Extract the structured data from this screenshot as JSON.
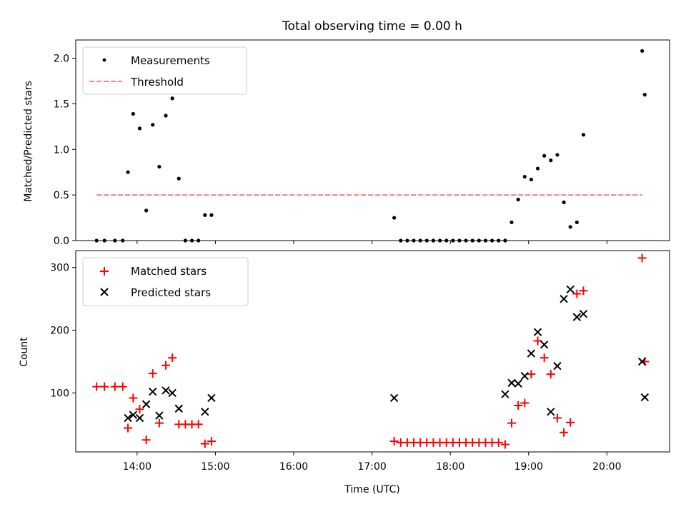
{
  "chart_data": [
    {
      "type": "scatter",
      "title": "Total observing time = 0.00 h",
      "xlabel": "",
      "ylabel": "Matched/Predicted stars",
      "xlim": [
        "13:13",
        "20:48"
      ],
      "ylim": [
        0,
        2.2
      ],
      "yticks": [
        "0.0",
        "0.5",
        "1.0",
        "1.5",
        "2.0"
      ],
      "legend": {
        "placement": "upper-left",
        "entries": [
          "Measurements",
          "Threshold"
        ]
      },
      "colors": {
        "measurements": "#000000",
        "threshold": "#ff7f7f"
      },
      "threshold": {
        "value": 0.5,
        "x_range": [
          "13:29",
          "20:27"
        ]
      },
      "series": [
        {
          "name": "Measurements",
          "x": [
            "13:29",
            "13:35",
            "13:43",
            "13:49",
            "13:53",
            "13:57",
            "14:02",
            "14:07",
            "14:12",
            "14:17",
            "14:22",
            "14:27",
            "14:32",
            "14:37",
            "14:42",
            "14:47",
            "14:52",
            "14:57",
            "17:17",
            "17:22",
            "17:27",
            "17:32",
            "17:37",
            "17:42",
            "17:47",
            "17:52",
            "17:57",
            "18:02",
            "18:07",
            "18:12",
            "18:17",
            "18:22",
            "18:27",
            "18:32",
            "18:37",
            "18:42",
            "18:47",
            "18:52",
            "18:57",
            "19:02",
            "19:07",
            "19:12",
            "19:17",
            "19:22",
            "19:27",
            "19:32",
            "19:37",
            "19:42",
            "20:27",
            "20:29"
          ],
          "y": [
            0,
            0,
            0,
            0,
            0.75,
            1.39,
            1.23,
            0.33,
            1.27,
            0.81,
            1.37,
            1.56,
            0.68,
            0,
            0,
            0,
            0.28,
            0.28,
            0.25,
            0,
            0,
            0,
            0,
            0,
            0,
            0,
            0,
            0,
            0,
            0,
            0,
            0,
            0,
            0,
            0,
            0,
            0.2,
            0.45,
            0.7,
            0.67,
            0.79,
            0.93,
            0.88,
            0.94,
            0.42,
            0.15,
            0.2,
            1.16,
            2.08,
            1.6
          ]
        }
      ]
    },
    {
      "type": "scatter",
      "title": "",
      "xlabel": "Time (UTC)",
      "ylabel": "Count",
      "xlim": [
        "13:13",
        "20:48"
      ],
      "ylim": [
        6,
        327
      ],
      "yticks": [
        "100",
        "200",
        "300"
      ],
      "xticks": [
        "14:00",
        "15:00",
        "16:00",
        "17:00",
        "18:00",
        "19:00",
        "20:00"
      ],
      "legend": {
        "placement": "upper-left",
        "entries": [
          "Matched stars",
          "Predicted stars"
        ]
      },
      "colors": {
        "matched": "#ff0000",
        "predicted": "#000000"
      },
      "series": [
        {
          "name": "Matched stars",
          "x": [
            "13:29",
            "13:35",
            "13:43",
            "13:49",
            "13:53",
            "13:57",
            "14:02",
            "14:07",
            "14:12",
            "14:17",
            "14:22",
            "14:27",
            "14:32",
            "14:37",
            "14:42",
            "14:47",
            "14:52",
            "14:57",
            "17:17",
            "17:22",
            "17:27",
            "17:32",
            "17:37",
            "17:42",
            "17:47",
            "17:52",
            "17:57",
            "18:02",
            "18:07",
            "18:12",
            "18:17",
            "18:22",
            "18:27",
            "18:32",
            "18:37",
            "18:42",
            "18:47",
            "18:52",
            "18:57",
            "19:02",
            "19:07",
            "19:12",
            "19:17",
            "19:22",
            "19:27",
            "19:32",
            "19:37",
            "19:42",
            "20:27",
            "20:29"
          ],
          "y": [
            110,
            110,
            110,
            110,
            44,
            92,
            74,
            25,
            131,
            52,
            144,
            156,
            50,
            50,
            50,
            50,
            19,
            23,
            23,
            21,
            21,
            21,
            21,
            21,
            21,
            21,
            21,
            21,
            21,
            21,
            21,
            21,
            21,
            21,
            21,
            18,
            52,
            80,
            84,
            130,
            183,
            156,
            130,
            60,
            37,
            53,
            258,
            263,
            315,
            150
          ]
        },
        {
          "name": "Predicted stars",
          "x": [
            "13:53",
            "13:57",
            "14:02",
            "14:07",
            "14:12",
            "14:17",
            "14:22",
            "14:27",
            "14:32",
            "14:52",
            "14:57",
            "17:17",
            "18:42",
            "18:47",
            "18:52",
            "18:57",
            "19:02",
            "19:07",
            "19:12",
            "19:17",
            "19:22",
            "19:27",
            "19:32",
            "19:37",
            "19:42",
            "20:27",
            "20:29"
          ],
          "y": [
            60,
            65,
            60,
            82,
            102,
            64,
            104,
            100,
            75,
            70,
            92,
            92,
            98,
            116,
            115,
            127,
            163,
            197,
            177,
            70,
            143,
            250,
            265,
            221,
            226,
            150,
            93
          ]
        }
      ]
    }
  ],
  "legend_labels": {
    "measurements": "Measurements",
    "threshold": "Threshold",
    "matched": "Matched stars",
    "predicted": "Predicted stars"
  }
}
